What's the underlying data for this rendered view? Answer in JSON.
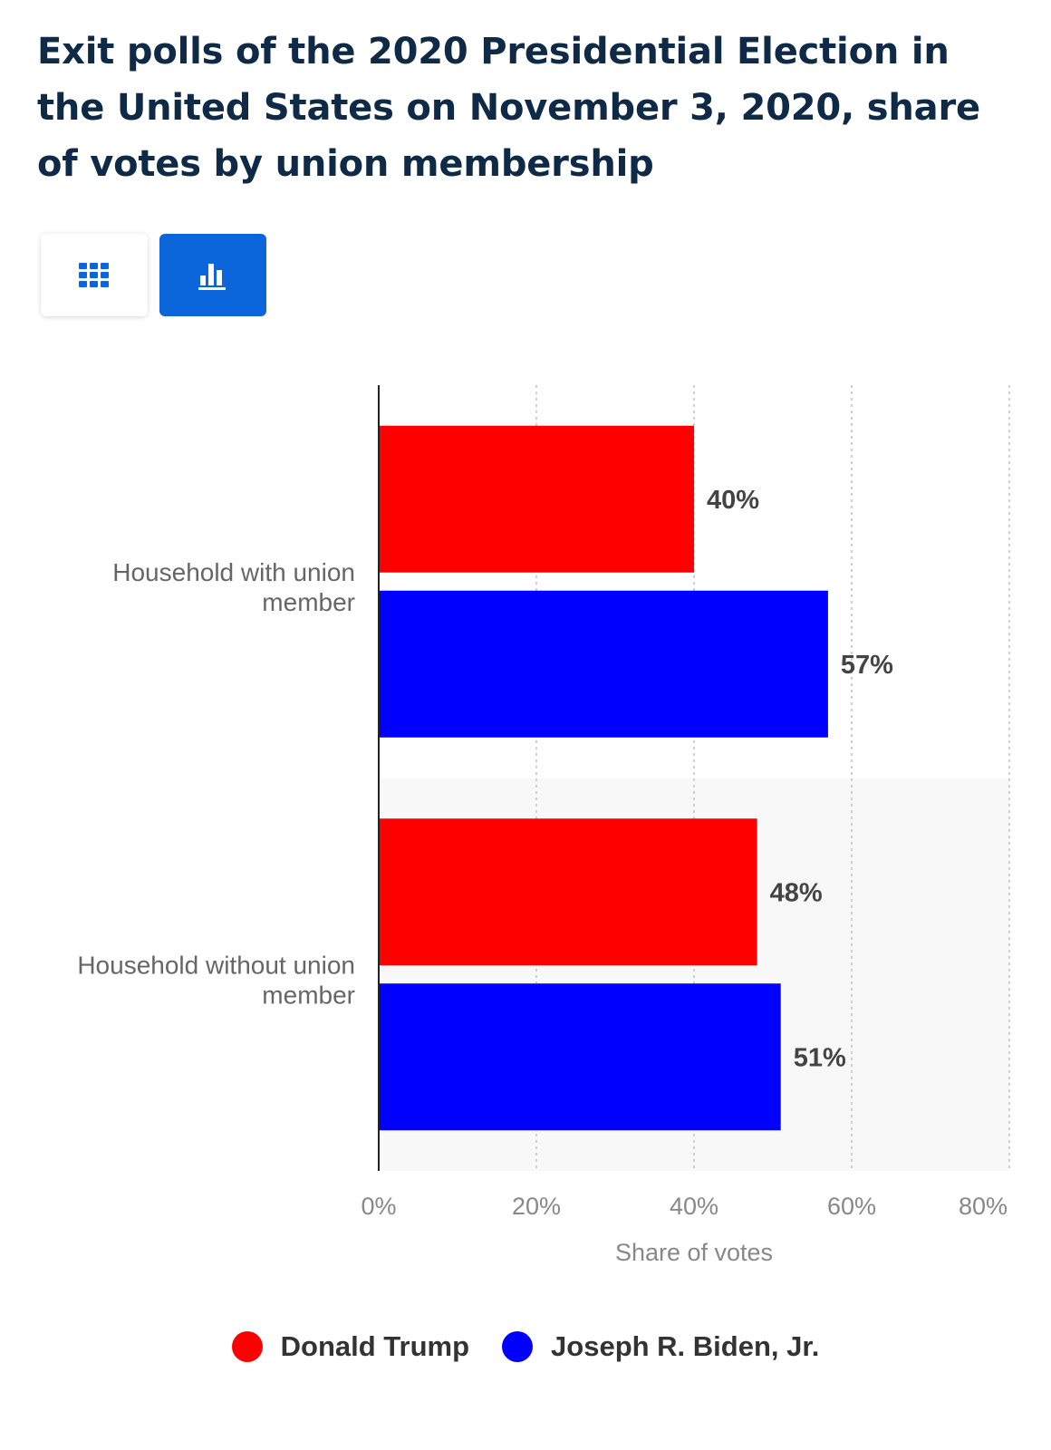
{
  "title": "Exit polls of the 2020 Presidential Election in the United States on November 3, 2020, share of votes by union membership",
  "view_toggle": {
    "table_icon": "table-grid-icon",
    "chart_icon": "bar-chart-icon",
    "active": "chart"
  },
  "colors": {
    "trump": "#ff0000",
    "biden": "#0000ff",
    "accent": "#0b66dc",
    "title": "#0f2a47"
  },
  "chart_data": {
    "type": "bar",
    "orientation": "horizontal",
    "categories": [
      "Household with union member",
      "Household without union member"
    ],
    "series": [
      {
        "name": "Donald Trump",
        "color": "#ff0000",
        "values": [
          40,
          48
        ]
      },
      {
        "name": "Joseph R. Biden, Jr.",
        "color": "#0000ff",
        "values": [
          57,
          51
        ]
      }
    ],
    "data_labels": [
      [
        "40%",
        "48%"
      ],
      [
        "57%",
        "51%"
      ]
    ],
    "xlabel": "Share of votes",
    "xlim": [
      0,
      80
    ],
    "xticks": [
      0,
      20,
      40,
      60,
      80
    ],
    "xtick_labels": [
      "0%",
      "20%",
      "40%",
      "60%",
      "80%"
    ],
    "grid": true,
    "legend_position": "bottom"
  }
}
